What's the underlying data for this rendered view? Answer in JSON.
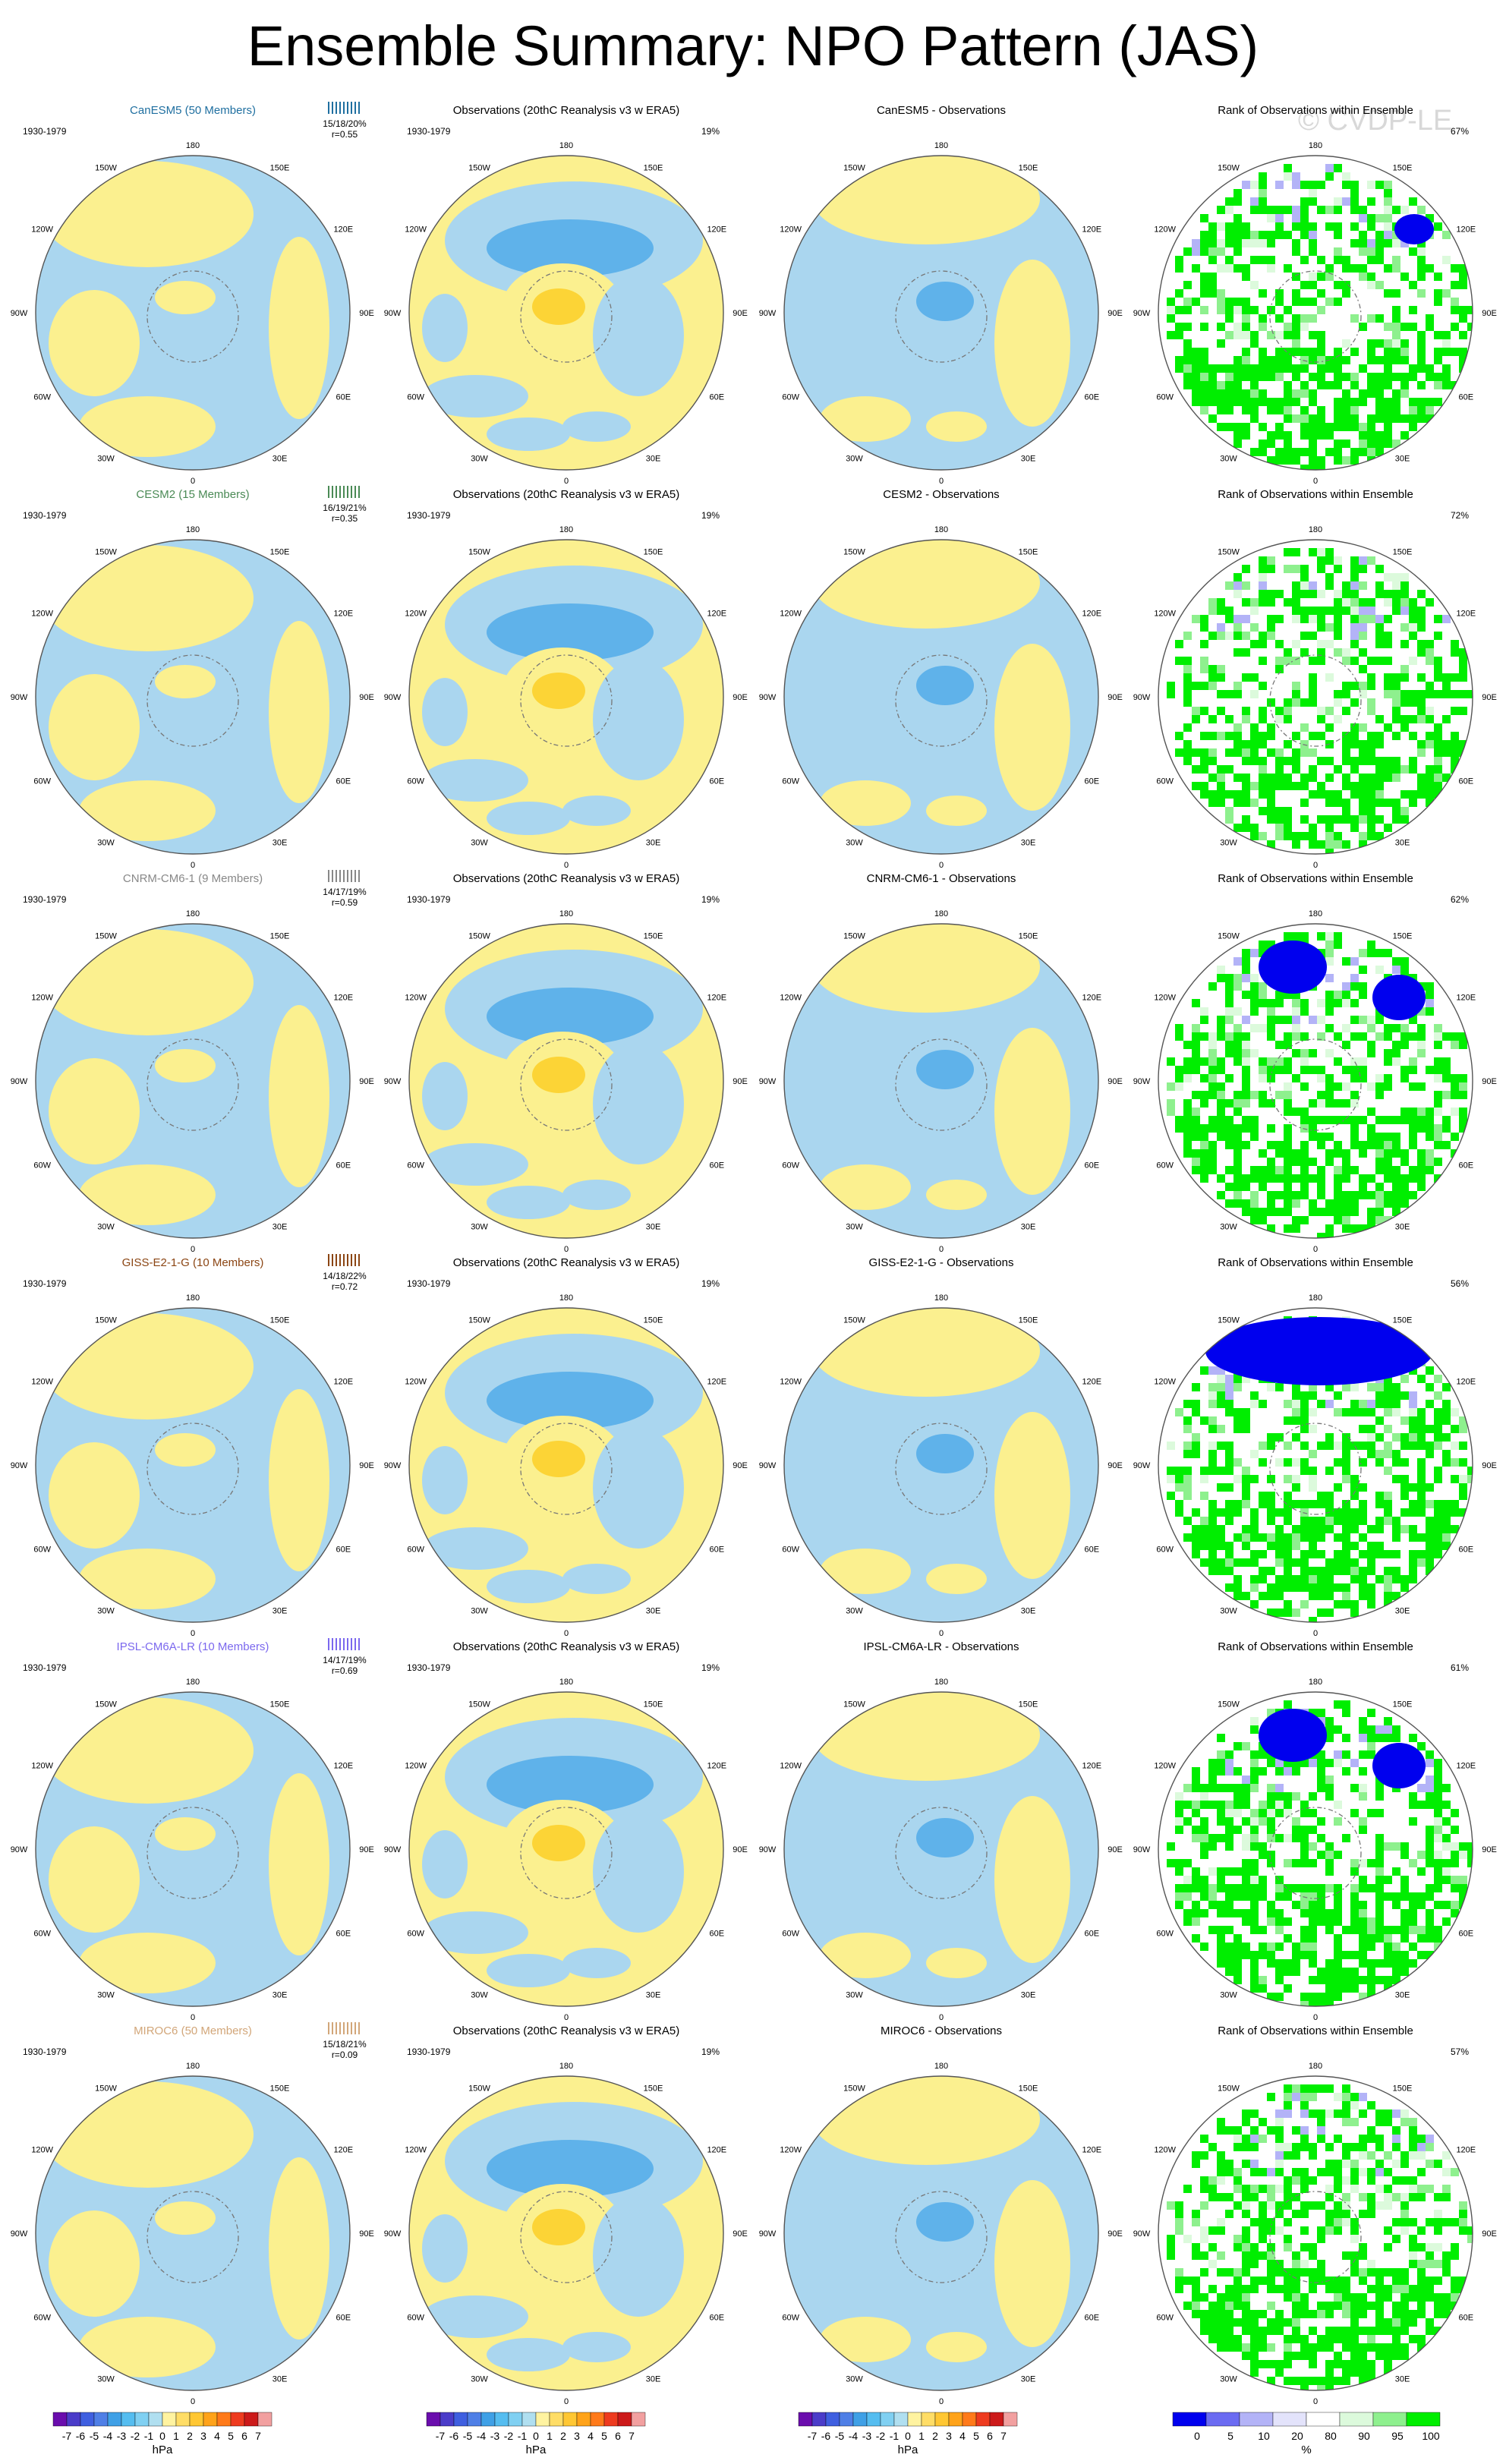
{
  "page": {
    "title": "Ensemble Summary: NPO Pattern (JAS)",
    "watermark": "© CVDP-LE"
  },
  "chart_data": {
    "type": "heatmap",
    "title": "Ensemble Summary: NPO Pattern (JAS)",
    "projection": "north polar stereographic",
    "longitude_labels": [
      "180",
      "150E",
      "120E",
      "90E",
      "60E",
      "30E",
      "0",
      "30W",
      "60W",
      "90W",
      "120W",
      "150W"
    ],
    "period": "1930-1979",
    "obs_title": "Observations (20thC Reanalysis v3 w ERA5)",
    "obs_pct": "19%",
    "rank_title": "Rank of Observations within Ensemble",
    "models": [
      {
        "name": "CanESM5",
        "members": "(50 Members)",
        "color": "#1f6fa0",
        "stats": "15/18/20%",
        "r": "r=0.55",
        "diff_title": "CanESM5 - Observations",
        "rank_pct": "67%"
      },
      {
        "name": "CESM2",
        "members": "(15 Members)",
        "color": "#4a8a55",
        "stats": "16/19/21%",
        "r": "r=0.35",
        "diff_title": "CESM2 - Observations",
        "rank_pct": "72%"
      },
      {
        "name": "CNRM-CM6-1",
        "members": "(9 Members)",
        "color": "#888888",
        "stats": "14/17/19%",
        "r": "r=0.59",
        "diff_title": "CNRM-CM6-1 - Observations",
        "rank_pct": "62%"
      },
      {
        "name": "GISS-E2-1-G",
        "members": "(10 Members)",
        "color": "#8b4513",
        "stats": "14/18/22%",
        "r": "r=0.72",
        "diff_title": "GISS-E2-1-G - Observations",
        "rank_pct": "56%"
      },
      {
        "name": "IPSL-CM6A-LR",
        "members": "(10 Members)",
        "color": "#7b68ee",
        "stats": "14/17/19%",
        "r": "r=0.69",
        "diff_title": "IPSL-CM6A-LR - Observations",
        "rank_pct": "61%"
      },
      {
        "name": "MIROC6",
        "members": "(50 Members)",
        "color": "#d2a679",
        "stats": "15/18/21%",
        "r": "r=0.09",
        "diff_title": "MIROC6 - Observations",
        "rank_pct": "57%"
      }
    ],
    "colorbar_hpa": {
      "labels": [
        "-7",
        "-6",
        "-5",
        "-4",
        "-3",
        "-2",
        "-1",
        "0",
        "1",
        "2",
        "3",
        "4",
        "5",
        "6",
        "7"
      ],
      "unit": "hPa",
      "colors": [
        "#6a0dad",
        "#4b3cc9",
        "#3f5fe0",
        "#4f7fe6",
        "#3fa0e6",
        "#55bdf0",
        "#80d0f2",
        "#b0dff0",
        "#fff3a0",
        "#ffdd66",
        "#ffc733",
        "#ffa31a",
        "#ff7a1a",
        "#ee3b1f",
        "#cc1a1a",
        "#f2a0a0"
      ]
    },
    "colorbar_rank": {
      "labels": [
        "0",
        "5",
        "10",
        "20",
        "80",
        "90",
        "95",
        "100"
      ],
      "unit": "%",
      "colors": [
        "#0000ee",
        "#6b6bf2",
        "#b3b3f7",
        "#e3e3fb",
        "#ffffff",
        "#dcfadc",
        "#8ef08e",
        "#00ee00"
      ]
    },
    "pattern_colors": {
      "positive": "#fbf08f",
      "negative": "#aad6ef",
      "strong_positive": "#fcd436",
      "strong_negative": "#5fb2ea",
      "rank_high": "#00ee00",
      "rank_low": "#0000ee",
      "rank_mid_low": "#b3b3f7"
    }
  }
}
